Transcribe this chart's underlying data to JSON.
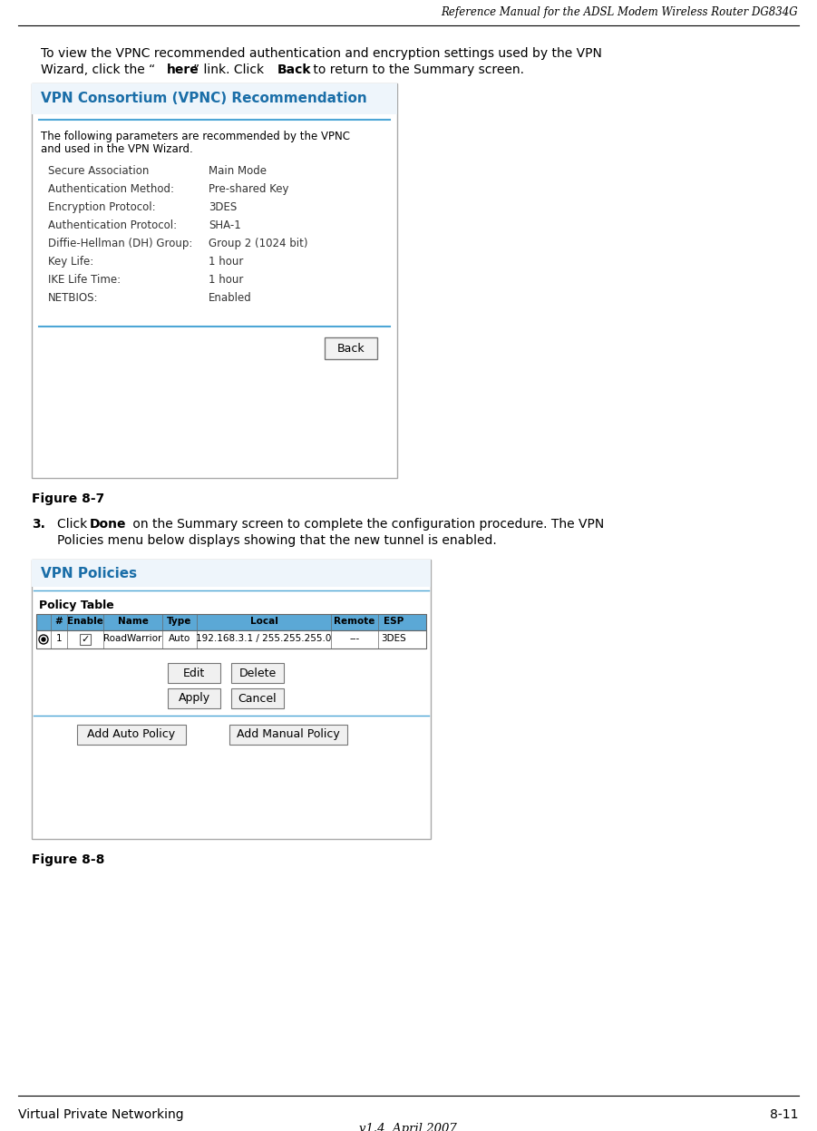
{
  "header_title": "Reference Manual for the ADSL Modem Wireless Router DG834G",
  "footer_left": "Virtual Private Networking",
  "footer_right": "8-11",
  "footer_version": "v1.4, April 2007",
  "vpnc_title": "VPN Consortium (VPNC) Recommendation",
  "vpnc_desc1": "The following parameters are recommended by the VPNC",
  "vpnc_desc2": "and used in the VPN Wizard.",
  "vpnc_params": [
    [
      "Secure Association",
      "Main Mode"
    ],
    [
      "Authentication Method:",
      "Pre-shared Key"
    ],
    [
      "Encryption Protocol:",
      "3DES"
    ],
    [
      "Authentication Protocol:",
      "SHA-1"
    ],
    [
      "Diffie-Hellman (DH) Group:",
      "Group 2 (1024 bit)"
    ],
    [
      "Key Life:",
      "1 hour"
    ],
    [
      "IKE Life Time:",
      "1 hour"
    ],
    [
      "NETBIOS:",
      "Enabled"
    ]
  ],
  "vpn2_title": "VPN Policies",
  "vpn2_policy_table": "Policy Table",
  "vpn2_headers": [
    "#",
    "Enable",
    "Name",
    "Type",
    "Local",
    "Remote",
    "ESP"
  ],
  "vpn2_row": [
    "1",
    "",
    "RoadWarrior",
    "Auto",
    "192.168.3.1 / 255.255.255.0",
    "---",
    "3DES"
  ],
  "bg_color": "#ffffff",
  "vpnc_title_color": "#1a6ea8",
  "vpnc_line_color": "#4da6d6",
  "table_header_bg": "#5ba8d6",
  "table_header_text": "#000000"
}
